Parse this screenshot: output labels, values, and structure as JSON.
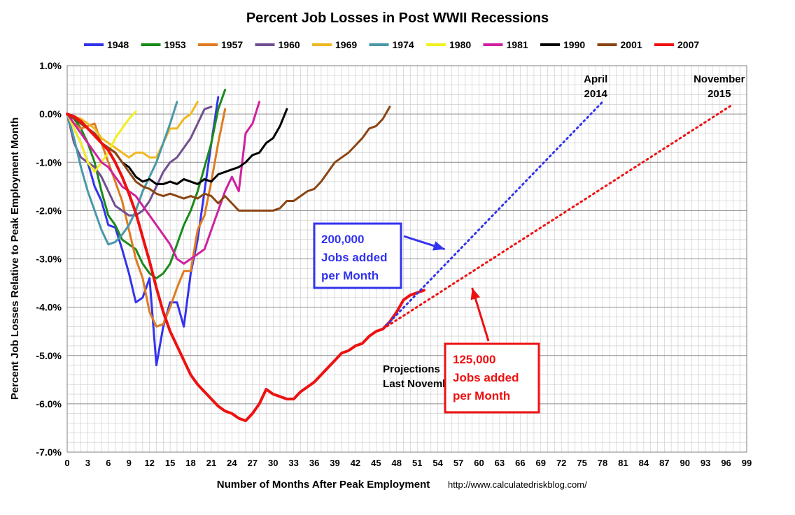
{
  "chart_data": {
    "type": "line",
    "title": "Percent Job Losses in Post WWII Recessions",
    "xlabel": "Number of Months After Peak Employment",
    "ylabel": "Percent Job Losses Relative to Peak Employment Month",
    "source": "http://www.calculatedriskblog.com/",
    "xlim": [
      0,
      99
    ],
    "ylim": [
      -7.0,
      1.0
    ],
    "x_ticks": [
      0,
      3,
      6,
      9,
      12,
      15,
      18,
      21,
      24,
      27,
      30,
      33,
      36,
      39,
      42,
      45,
      48,
      51,
      54,
      57,
      60,
      63,
      66,
      69,
      72,
      75,
      78,
      81,
      84,
      87,
      90,
      93,
      96,
      99
    ],
    "y_ticks": [
      1.0,
      0.0,
      -1.0,
      -2.0,
      -3.0,
      -4.0,
      -5.0,
      -6.0,
      -7.0
    ],
    "y_tick_labels": [
      "1.0%",
      "0.0%",
      "-1.0%",
      "-2.0%",
      "-3.0%",
      "-4.0%",
      "-5.0%",
      "-6.0%",
      "-7.0%"
    ],
    "grid": true,
    "legend_position": "top",
    "series": [
      {
        "name": "1948",
        "color": "#3333ee",
        "width": 3,
        "values": [
          0,
          -0.3,
          -0.6,
          -1.0,
          -1.5,
          -1.8,
          -2.3,
          -2.35,
          -2.8,
          -3.3,
          -3.9,
          -3.8,
          -3.4,
          -5.2,
          -4.4,
          -3.9,
          -3.9,
          -4.4,
          -3.3,
          -2.6,
          -1.6,
          -0.6,
          0.35
        ]
      },
      {
        "name": "1953",
        "color": "#1a8a1a",
        "width": 3,
        "values": [
          0,
          -0.1,
          -0.3,
          -0.6,
          -1.0,
          -1.6,
          -2.1,
          -2.3,
          -2.6,
          -2.7,
          -2.8,
          -3.1,
          -3.3,
          -3.4,
          -3.3,
          -3.1,
          -2.7,
          -2.3,
          -2.0,
          -1.6,
          -1.1,
          -0.6,
          0.1,
          0.5
        ]
      },
      {
        "name": "1957",
        "color": "#e07b20",
        "width": 3,
        "values": [
          0,
          -0.2,
          -0.3,
          -0.25,
          -0.2,
          -0.6,
          -1.0,
          -1.4,
          -1.8,
          -2.4,
          -3.0,
          -3.4,
          -4.1,
          -4.4,
          -4.35,
          -4.0,
          -3.6,
          -3.25,
          -3.25,
          -2.4,
          -2.1,
          -1.4,
          -0.6,
          0.1
        ]
      },
      {
        "name": "1960",
        "color": "#705090",
        "width": 3,
        "values": [
          0,
          -0.6,
          -0.9,
          -1.0,
          -1.1,
          -1.3,
          -1.6,
          -1.9,
          -2.0,
          -2.1,
          -2.1,
          -2.0,
          -1.8,
          -1.5,
          -1.2,
          -1.0,
          -0.9,
          -0.7,
          -0.5,
          -0.2,
          0.1,
          0.15
        ]
      },
      {
        "name": "1969",
        "color": "#f0b820",
        "width": 3,
        "values": [
          0,
          -0.05,
          -0.1,
          -0.2,
          -0.3,
          -0.5,
          -0.6,
          -0.7,
          -0.8,
          -0.9,
          -0.8,
          -0.8,
          -0.9,
          -0.9,
          -0.6,
          -0.3,
          -0.3,
          -0.1,
          0.0,
          0.25
        ]
      },
      {
        "name": "1974",
        "color": "#4a98a8",
        "width": 3,
        "values": [
          0,
          -0.5,
          -1.1,
          -1.6,
          -2.0,
          -2.4,
          -2.7,
          -2.65,
          -2.5,
          -2.3,
          -2.0,
          -1.6,
          -1.3,
          -1.0,
          -0.6,
          -0.2,
          0.25
        ]
      },
      {
        "name": "1980",
        "color": "#f0f020",
        "width": 3,
        "values": [
          0,
          -0.3,
          -0.6,
          -1.0,
          -1.2,
          -1.0,
          -0.8,
          -0.5,
          -0.3,
          -0.1,
          0.05
        ]
      },
      {
        "name": "1981",
        "color": "#d020a0",
        "width": 3,
        "values": [
          0,
          -0.2,
          -0.4,
          -0.6,
          -0.8,
          -1.0,
          -1.1,
          -1.3,
          -1.5,
          -1.6,
          -1.7,
          -1.9,
          -2.1,
          -2.3,
          -2.5,
          -2.7,
          -3.0,
          -3.1,
          -3.0,
          -2.9,
          -2.8,
          -2.4,
          -2.0,
          -1.6,
          -1.3,
          -1.6,
          -0.4,
          -0.2,
          0.25
        ]
      },
      {
        "name": "1990",
        "color": "#000000",
        "width": 3,
        "values": [
          0,
          -0.1,
          -0.2,
          -0.3,
          -0.4,
          -0.6,
          -0.7,
          -0.8,
          -1.0,
          -1.1,
          -1.3,
          -1.4,
          -1.35,
          -1.45,
          -1.45,
          -1.4,
          -1.45,
          -1.35,
          -1.4,
          -1.45,
          -1.35,
          -1.4,
          -1.25,
          -1.2,
          -1.15,
          -1.1,
          -1.0,
          -0.85,
          -0.8,
          -0.6,
          -0.5,
          -0.25,
          0.1
        ]
      },
      {
        "name": "2001",
        "color": "#8b4513",
        "width": 3,
        "values": [
          0,
          -0.1,
          -0.2,
          -0.3,
          -0.4,
          -0.6,
          -0.7,
          -0.8,
          -1.0,
          -1.2,
          -1.4,
          -1.5,
          -1.55,
          -1.65,
          -1.7,
          -1.65,
          -1.7,
          -1.75,
          -1.7,
          -1.75,
          -1.65,
          -1.7,
          -1.85,
          -1.7,
          -1.85,
          -2.0,
          -2.0,
          -2.0,
          -2.0,
          -2.0,
          -2.0,
          -1.95,
          -1.8,
          -1.8,
          -1.7,
          -1.6,
          -1.55,
          -1.4,
          -1.2,
          -1.0,
          -0.9,
          -0.8,
          -0.65,
          -0.5,
          -0.3,
          -0.25,
          -0.1,
          0.15
        ]
      },
      {
        "name": "2007",
        "color": "#ee1111",
        "width": 4,
        "values": [
          0,
          -0.05,
          -0.15,
          -0.3,
          -0.45,
          -0.6,
          -0.75,
          -1.0,
          -1.3,
          -1.65,
          -2.05,
          -2.55,
          -3.05,
          -3.6,
          -4.1,
          -4.5,
          -4.8,
          -5.1,
          -5.4,
          -5.6,
          -5.75,
          -5.9,
          -6.05,
          -6.15,
          -6.2,
          -6.3,
          -6.35,
          -6.2,
          -6.0,
          -5.7,
          -5.8,
          -5.85,
          -5.9,
          -5.9,
          -5.75,
          -5.65,
          -5.55,
          -5.4,
          -5.25,
          -5.1,
          -4.95,
          -4.9,
          -4.8,
          -4.75,
          -4.6,
          -4.5,
          -4.45,
          -4.3,
          -4.1,
          -3.85,
          -3.75,
          -3.7,
          -3.65
        ]
      },
      {
        "name": "Projection 200,000",
        "legend": false,
        "color": "#3333ee",
        "dotted": true,
        "x": [
          46,
          78
        ],
        "values": [
          -4.45,
          0.25
        ]
      },
      {
        "name": "Projection 125,000",
        "legend": false,
        "color": "#ee1111",
        "dotted": true,
        "x": [
          46,
          97
        ],
        "values": [
          -4.45,
          0.2
        ]
      }
    ],
    "annotations": [
      {
        "lines": [
          "April",
          "2014"
        ],
        "x": 77,
        "y": 0.65
      },
      {
        "lines": [
          "November",
          "2015"
        ],
        "x": 95,
        "y": 0.65
      },
      {
        "lines": [
          "Projections",
          "Last November"
        ],
        "x": 46,
        "y": -5.35
      }
    ],
    "callouts": [
      {
        "lines": [
          "200,000",
          "Jobs added",
          "per Month"
        ],
        "color": "#3333ee",
        "arrow_to": {
          "x": 55,
          "y": -2.8
        }
      },
      {
        "lines": [
          "125,000",
          "Jobs added",
          "per Month"
        ],
        "color": "#ee1111",
        "arrow_to": {
          "x": 59,
          "y": -3.6
        }
      }
    ]
  }
}
